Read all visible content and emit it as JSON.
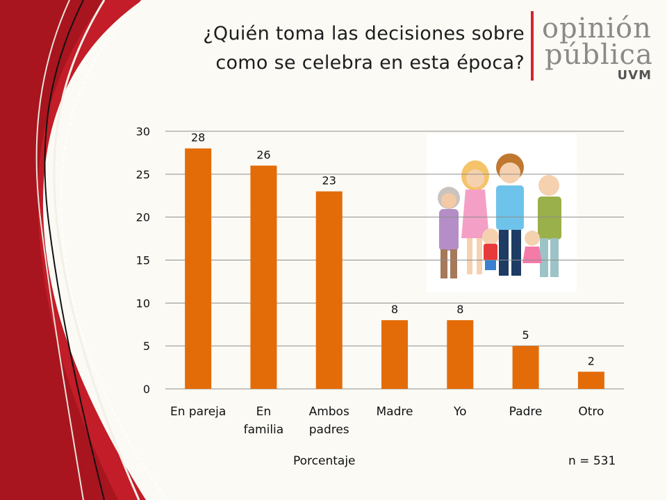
{
  "title": {
    "line1": "¿Quién toma las decisiones sobre",
    "line2": "como se celebra en esta época?"
  },
  "brand": {
    "line1": "opinión",
    "line2": "pública",
    "line3": "UVM",
    "accent": "#d3262f"
  },
  "footer": {
    "xlabel": "Porcentaje",
    "n": "n = 531"
  },
  "chart_data": {
    "type": "bar",
    "categories": [
      [
        "En pareja"
      ],
      [
        "En",
        "familia"
      ],
      [
        "Ambos",
        "padres"
      ],
      [
        "Madre"
      ],
      [
        "Yo"
      ],
      [
        "Padre"
      ],
      [
        "Otro"
      ]
    ],
    "values": [
      28,
      26,
      23,
      8,
      8,
      5,
      2
    ],
    "data_labels": [
      "28",
      "26",
      "23",
      "8",
      "8",
      "5",
      "2"
    ],
    "yticks": [
      "0",
      "5",
      "10",
      "15",
      "20",
      "25",
      "30"
    ],
    "ylim": [
      0,
      30
    ],
    "grid": true,
    "bar_color": "#e36c09"
  },
  "illustration": {
    "icon": "family-illustration-icon"
  }
}
